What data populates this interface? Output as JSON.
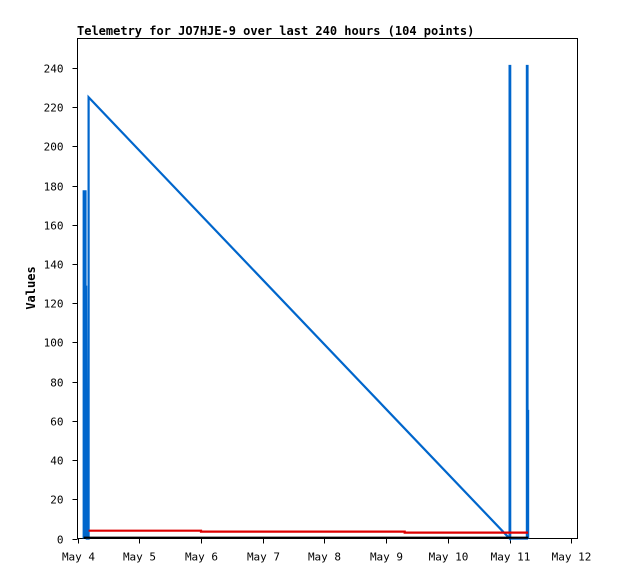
{
  "chart_data": {
    "type": "line",
    "title": "Telemetry for JO7HJE-9 over last 240 hours (104 points)",
    "xlabel": "",
    "ylabel": "Values",
    "x_unit": "day",
    "x_ticks": [
      "May 4",
      "May 5",
      "May 6",
      "May 7",
      "May 8",
      "May 9",
      "May 10",
      "May 11",
      "May 12"
    ],
    "xlim": [
      4.0,
      12.1
    ],
    "ylim": [
      0,
      255
    ],
    "y_ticks": [
      "0",
      "20",
      "40",
      "60",
      "80",
      "100",
      "120",
      "140",
      "160",
      "180",
      "200",
      "220",
      "240"
    ],
    "grid": false,
    "legend": "none",
    "series": [
      {
        "color": "#0066cc",
        "points": [
          [
            4.1,
            0
          ],
          [
            4.1,
            177
          ],
          [
            4.13,
            177
          ],
          [
            4.13,
            0
          ],
          [
            4.14,
            129
          ],
          [
            4.15,
            0
          ],
          [
            4.18,
            0
          ],
          [
            4.18,
            225
          ],
          [
            11.0,
            0
          ],
          [
            11.0,
            241
          ],
          [
            11.01,
            241
          ],
          [
            11.01,
            0
          ],
          [
            11.28,
            0
          ],
          [
            11.28,
            241
          ],
          [
            11.29,
            241
          ],
          [
            11.29,
            65
          ],
          [
            11.3,
            65
          ],
          [
            11.3,
            0
          ]
        ]
      },
      {
        "color": "#dd0000",
        "points": [
          [
            4.18,
            4
          ],
          [
            6.0,
            4
          ],
          [
            6.0,
            3.5
          ],
          [
            9.3,
            3.5
          ],
          [
            9.3,
            3
          ],
          [
            11.3,
            3
          ]
        ]
      },
      {
        "color": "#000000",
        "points": [
          [
            4.1,
            0.4
          ],
          [
            11.3,
            0.4
          ]
        ]
      }
    ]
  }
}
